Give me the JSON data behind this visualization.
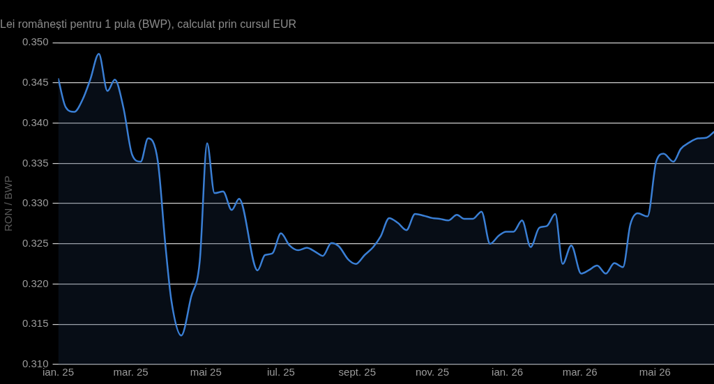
{
  "chart_data": {
    "type": "area",
    "title": "Lei românești pentru 1 pula (BWP), calculat prin cursul EUR",
    "ylabel": "RON / BWP",
    "x": [
      "2025-01-01",
      "2025-01-07",
      "2025-01-14",
      "2025-01-21",
      "2025-01-27",
      "2025-02-03",
      "2025-02-10",
      "2025-02-16",
      "2025-02-23",
      "2025-03-02",
      "2025-03-09",
      "2025-03-15",
      "2025-03-23",
      "2025-03-29",
      "2025-04-03",
      "2025-04-11",
      "2025-04-19",
      "2025-04-26",
      "2025-05-02",
      "2025-05-08",
      "2025-05-15",
      "2025-05-22",
      "2025-05-28",
      "2025-06-12",
      "2025-06-18",
      "2025-06-24",
      "2025-07-01",
      "2025-07-08",
      "2025-07-15",
      "2025-07-22",
      "2025-07-29",
      "2025-08-04",
      "2025-08-11",
      "2025-08-17",
      "2025-08-25",
      "2025-08-31",
      "2025-09-07",
      "2025-09-14",
      "2025-09-20",
      "2025-09-27",
      "2025-10-04",
      "2025-10-11",
      "2025-10-18",
      "2025-10-25",
      "2025-11-01",
      "2025-11-07",
      "2025-11-14",
      "2025-11-21",
      "2025-11-27",
      "2025-12-04",
      "2025-12-11",
      "2025-12-18",
      "2025-12-25",
      "2025-12-31",
      "2026-01-06",
      "2026-01-13",
      "2026-01-20",
      "2026-01-27",
      "2026-02-02",
      "2026-02-09",
      "2026-02-15",
      "2026-02-22",
      "2026-03-02",
      "2026-03-08",
      "2026-03-15",
      "2026-03-22",
      "2026-03-29",
      "2026-04-05",
      "2026-04-11",
      "2026-04-17",
      "2026-04-25",
      "2026-05-02",
      "2026-05-08",
      "2026-05-16",
      "2026-05-22",
      "2026-05-29",
      "2026-06-05",
      "2026-06-12",
      "2026-06-18"
    ],
    "series": [
      {
        "color": "#3a7fd5",
        "values": [
          0.3455,
          0.342,
          0.3414,
          0.343,
          0.3454,
          0.3486,
          0.344,
          0.3454,
          0.3419,
          0.3361,
          0.3352,
          0.3381,
          0.3352,
          0.325,
          0.3179,
          0.3136,
          0.3184,
          0.3228,
          0.3375,
          0.3313,
          0.3315,
          0.3292,
          0.3306,
          0.3217,
          0.3236,
          0.3238,
          0.3263,
          0.3248,
          0.3242,
          0.3245,
          0.324,
          0.3235,
          0.3251,
          0.3247,
          0.323,
          0.3225,
          0.3236,
          0.3246,
          0.3259,
          0.3282,
          0.3276,
          0.3267,
          0.3287,
          0.3285,
          0.3282,
          0.3281,
          0.3279,
          0.3286,
          0.3281,
          0.3281,
          0.329,
          0.325,
          0.326,
          0.3265,
          0.3265,
          0.3279,
          0.3246,
          0.327,
          0.3272,
          0.3287,
          0.3225,
          0.3248,
          0.3213,
          0.3217,
          0.3223,
          0.3213,
          0.3226,
          0.3221,
          0.3274,
          0.3288,
          0.3284,
          0.3352,
          0.3362,
          0.3352,
          0.3368,
          0.3376,
          0.3381,
          0.3382,
          0.3389
        ]
      }
    ],
    "xlim": [
      "2025-01-01",
      "2026-06-18"
    ],
    "xticks": [
      {
        "value": "2025-01-01",
        "label": "ian. 25"
      },
      {
        "value": "2025-03-01",
        "label": "mar. 25"
      },
      {
        "value": "2025-05-01",
        "label": "mai 25"
      },
      {
        "value": "2025-07-01",
        "label": "iul. 25"
      },
      {
        "value": "2025-09-01",
        "label": "sept. 25"
      },
      {
        "value": "2025-11-01",
        "label": "nov. 25"
      },
      {
        "value": "2026-01-01",
        "label": "ian. 26"
      },
      {
        "value": "2026-03-01",
        "label": "mar. 26"
      },
      {
        "value": "2026-05-01",
        "label": "mai 26"
      }
    ],
    "ylim": [
      0.31,
      0.35
    ],
    "yticks": [
      {
        "value": 0.31,
        "label": "0.310"
      },
      {
        "value": 0.315,
        "label": "0.315"
      },
      {
        "value": 0.32,
        "label": "0.320"
      },
      {
        "value": 0.325,
        "label": "0.325"
      },
      {
        "value": 0.33,
        "label": "0.330"
      },
      {
        "value": 0.335,
        "label": "0.335"
      },
      {
        "value": 0.34,
        "label": "0.340"
      },
      {
        "value": 0.345,
        "label": "0.345"
      },
      {
        "value": 0.35,
        "label": "0.350"
      }
    ],
    "grid": "y",
    "legend": false,
    "marker": "none",
    "line_style": "solid"
  }
}
